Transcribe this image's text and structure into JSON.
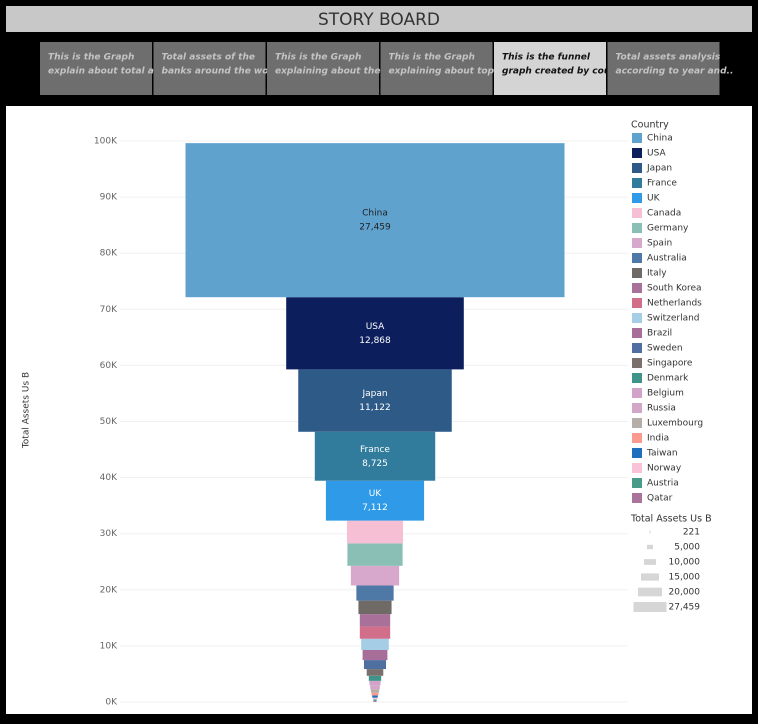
{
  "header": {
    "title": "STORY BOARD"
  },
  "tabs": [
    [
      "This is the Graph",
      "explain about total as.."
    ],
    [
      "Total assets of the",
      "banks around the wor.."
    ],
    [
      "This is the Graph",
      "explaining about the .."
    ],
    [
      "This is the Graph",
      "explaining about  top .."
    ],
    [
      "This is  the  funnel",
      "graph created by   cou.."
    ],
    [
      "Total assets analysis",
      "according to year and.."
    ]
  ],
  "selected_tab": 4,
  "chart_data": {
    "type": "funnel",
    "y_label": "Total Assets Us B",
    "ylim": [
      0,
      100000
    ],
    "yticks": [
      {
        "value": 0,
        "label": "0K"
      },
      {
        "value": 10000,
        "label": "10K"
      },
      {
        "value": 20000,
        "label": "20K"
      },
      {
        "value": 30000,
        "label": "30K"
      },
      {
        "value": 40000,
        "label": "40K"
      },
      {
        "value": 50000,
        "label": "50K"
      },
      {
        "value": 60000,
        "label": "60K"
      },
      {
        "value": 70000,
        "label": "70K"
      },
      {
        "value": 80000,
        "label": "80K"
      },
      {
        "value": 90000,
        "label": "90K"
      },
      {
        "value": 100000,
        "label": "100K"
      }
    ],
    "grid": true,
    "legend_title": "Country",
    "categories": [
      "China",
      "USA",
      "Japan",
      "France",
      "UK",
      "Canada",
      "Germany",
      "Spain",
      "Australia",
      "Italy",
      "South Korea",
      "Netherlands",
      "Switzerland",
      "Brazil",
      "Sweden",
      "Singapore",
      "Denmark",
      "Belgium",
      "Russia",
      "Luxembourg",
      "India",
      "Taiwan",
      "Norway",
      "Austria",
      "Qatar"
    ],
    "values": [
      27459,
      12868,
      11122,
      8725,
      7112,
      4060,
      4000,
      3500,
      2700,
      2400,
      2200,
      2200,
      2000,
      1800,
      1600,
      1200,
      900,
      800,
      700,
      600,
      500,
      400,
      300,
      250,
      221
    ],
    "value_labels": [
      "27,459",
      "12,868",
      "11,122",
      "8,725",
      "7,112",
      null,
      null,
      null,
      null,
      null,
      null,
      null,
      null,
      null,
      null,
      null,
      null,
      null,
      null,
      null,
      null,
      null,
      null,
      null,
      null
    ],
    "colors": [
      "#5fa2ce",
      "#0c1e5c",
      "#2e5a87",
      "#317b9c",
      "#2e9ae8",
      "#f7bfd4",
      "#8abfb5",
      "#d8a8cc",
      "#4e79a7",
      "#706a66",
      "#a9719a",
      "#d16e8a",
      "#a6cde6",
      "#a66e99",
      "#4f6fa1",
      "#79706e",
      "#3e9488",
      "#d3a2c9",
      "#d4a6c8",
      "#b6aea8",
      "#fb9a8f",
      "#1f6fbf",
      "#f9c2d6",
      "#4a9a8a",
      "#a9739a"
    ],
    "size_legend": {
      "title": "Total Assets Us B",
      "values": [
        221,
        {
          "value": 5000,
          "label": "5,000"
        },
        {
          "value": 10000,
          "label": "10,000"
        },
        {
          "value": 15000,
          "label": "15,000"
        },
        {
          "value": 20000,
          "label": "20,000"
        },
        {
          "value": 27459,
          "label": "27,459"
        }
      ]
    }
  }
}
